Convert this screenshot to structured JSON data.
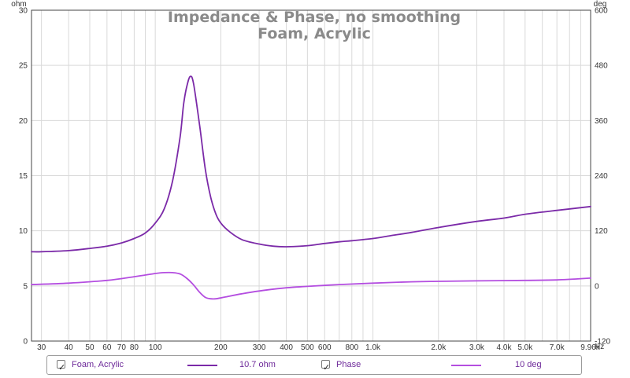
{
  "chart_data": {
    "type": "line",
    "title": "Impedance & Phase, no smoothing",
    "subtitle": "Foam, Acrylic",
    "x_scale": "log",
    "xlim": [
      27,
      10000
    ],
    "x_unit": "Hz",
    "x_tick_labels": [
      {
        "v": 30,
        "t": "30"
      },
      {
        "v": 40,
        "t": "40"
      },
      {
        "v": 50,
        "t": "50"
      },
      {
        "v": 60,
        "t": "60"
      },
      {
        "v": 70,
        "t": "70"
      },
      {
        "v": 80,
        "t": "80"
      },
      {
        "v": 100,
        "t": "100"
      },
      {
        "v": 200,
        "t": "200"
      },
      {
        "v": 300,
        "t": "300"
      },
      {
        "v": 400,
        "t": "400"
      },
      {
        "v": 500,
        "t": "500"
      },
      {
        "v": 600,
        "t": "600"
      },
      {
        "v": 800,
        "t": "800"
      },
      {
        "v": 1000,
        "t": "1.0k"
      },
      {
        "v": 2000,
        "t": "2.0k"
      },
      {
        "v": 3000,
        "t": "3.0k"
      },
      {
        "v": 4000,
        "t": "4.0k"
      },
      {
        "v": 5000,
        "t": "5.0k"
      },
      {
        "v": 7000,
        "t": "7.0k"
      },
      {
        "v": 9960,
        "t": "9.96k"
      }
    ],
    "y_left": {
      "unit": "ohm",
      "lim": [
        0,
        30
      ],
      "ticks": [
        0,
        5,
        10,
        15,
        20,
        25,
        30
      ]
    },
    "y_right": {
      "unit": "deg",
      "lim": [
        -120,
        600
      ],
      "ticks": [
        -120,
        0,
        120,
        240,
        360,
        480,
        600
      ]
    },
    "grid": true,
    "legend_position": "bottom",
    "series": [
      {
        "name": "Foam, Acrylic",
        "axis": "left",
        "color": "#7b2aa8",
        "readout": "10.7 ohm",
        "points": [
          [
            27,
            8.1
          ],
          [
            30,
            8.1
          ],
          [
            40,
            8.2
          ],
          [
            50,
            8.4
          ],
          [
            60,
            8.6
          ],
          [
            70,
            8.9
          ],
          [
            80,
            9.3
          ],
          [
            90,
            9.8
          ],
          [
            100,
            10.7
          ],
          [
            110,
            12.0
          ],
          [
            120,
            14.5
          ],
          [
            130,
            18.5
          ],
          [
            135,
            21.5
          ],
          [
            140,
            23.2
          ],
          [
            145,
            24.0
          ],
          [
            150,
            23.3
          ],
          [
            160,
            19.5
          ],
          [
            170,
            15.5
          ],
          [
            180,
            13.0
          ],
          [
            190,
            11.5
          ],
          [
            200,
            10.7
          ],
          [
            220,
            9.9
          ],
          [
            250,
            9.2
          ],
          [
            300,
            8.8
          ],
          [
            350,
            8.6
          ],
          [
            400,
            8.55
          ],
          [
            500,
            8.65
          ],
          [
            600,
            8.85
          ],
          [
            700,
            9.0
          ],
          [
            800,
            9.1
          ],
          [
            1000,
            9.3
          ],
          [
            1200,
            9.55
          ],
          [
            1500,
            9.85
          ],
          [
            2000,
            10.3
          ],
          [
            3000,
            10.85
          ],
          [
            4000,
            11.15
          ],
          [
            5000,
            11.5
          ],
          [
            7000,
            11.85
          ],
          [
            10000,
            12.2
          ]
        ]
      },
      {
        "name": "Phase",
        "axis": "right",
        "color": "#b44ee0",
        "readout": "10 deg",
        "points": [
          [
            27,
            3
          ],
          [
            40,
            6
          ],
          [
            60,
            12
          ],
          [
            80,
            20
          ],
          [
            100,
            27
          ],
          [
            110,
            29
          ],
          [
            120,
            29
          ],
          [
            130,
            26
          ],
          [
            140,
            16
          ],
          [
            150,
            2
          ],
          [
            160,
            -14
          ],
          [
            170,
            -25
          ],
          [
            180,
            -28
          ],
          [
            190,
            -28
          ],
          [
            210,
            -24
          ],
          [
            250,
            -17
          ],
          [
            300,
            -11
          ],
          [
            400,
            -4
          ],
          [
            500,
            -1
          ],
          [
            700,
            3
          ],
          [
            1000,
            6
          ],
          [
            1500,
            9
          ],
          [
            2000,
            10
          ],
          [
            3000,
            11
          ],
          [
            5000,
            12
          ],
          [
            7000,
            13
          ],
          [
            10000,
            17
          ]
        ]
      }
    ]
  },
  "legend": {
    "items": [
      {
        "label": "Foam, Acrylic",
        "checked": true,
        "value": "10.7 ohm",
        "color": "#7b2aa8"
      },
      {
        "label": "Phase",
        "checked": true,
        "value": "10 deg",
        "color": "#b44ee0"
      }
    ]
  }
}
